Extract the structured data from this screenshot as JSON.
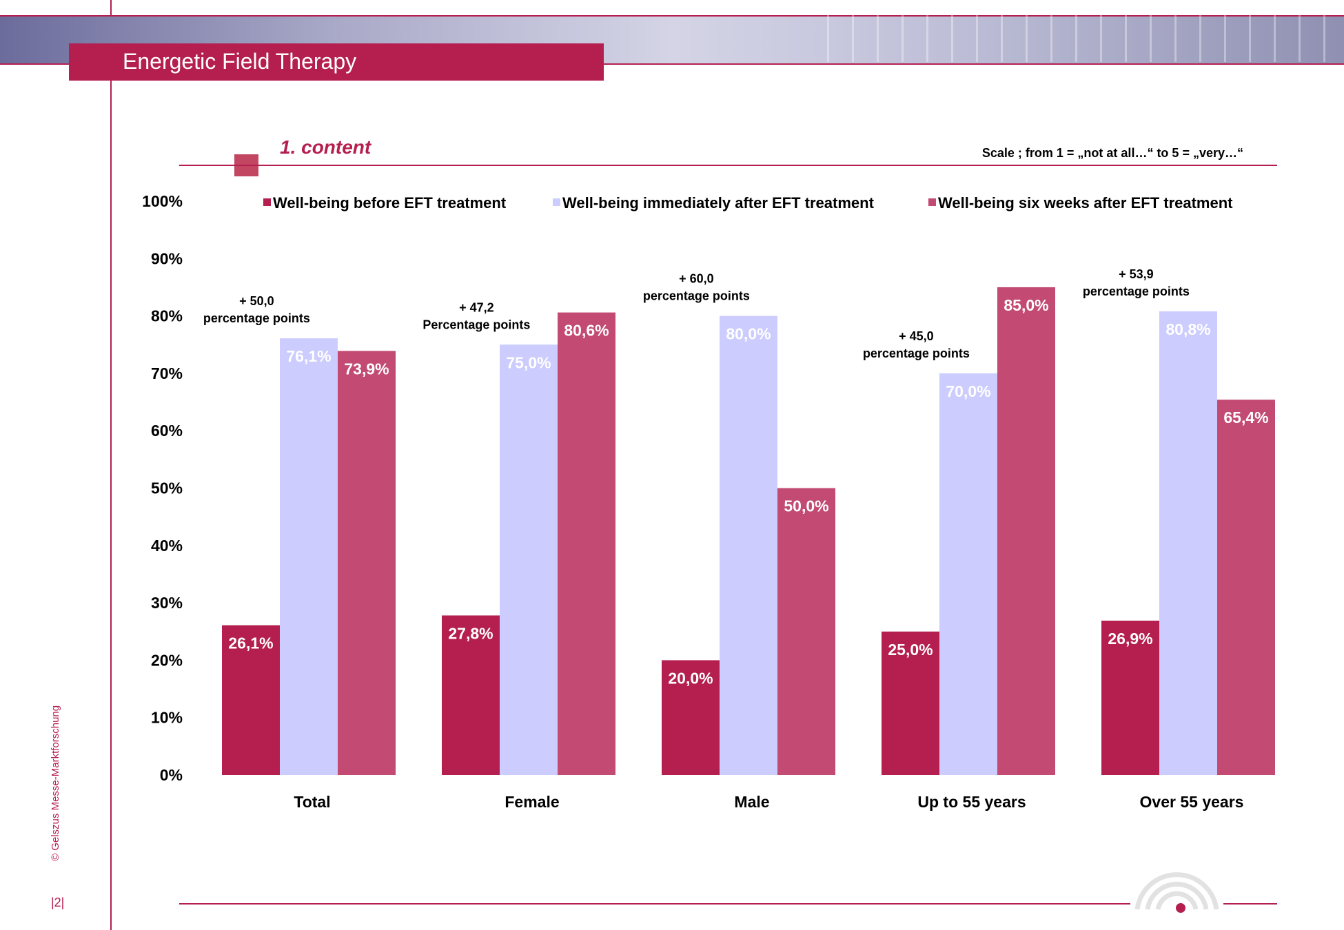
{
  "header": {
    "title": "Energetic Field Therapy"
  },
  "section": {
    "subtitle": "1. content",
    "scale_note": "Scale ; from 1 = „not at all…“  to 5 = „very…“"
  },
  "footer": {
    "copyright": "© Gelszus Messe-Marktforschung",
    "page": "|2|"
  },
  "colors": {
    "accent": "#b41f50",
    "before": "#b41f50",
    "immediately": "#ccccfe",
    "six_weeks": "#c24a73"
  },
  "chart_data": {
    "type": "bar",
    "categories": [
      "Total",
      "Female",
      "Male",
      "Up to 55 years",
      "Over 55 years"
    ],
    "ylim": [
      0,
      100
    ],
    "yticks": [
      "0%",
      "10%",
      "20%",
      "30%",
      "40%",
      "50%",
      "60%",
      "70%",
      "80%",
      "90%",
      "100%"
    ],
    "legend_position": "top",
    "grid": false,
    "series": [
      {
        "name": "Well-being before EFT treatment",
        "color": "#b41f50",
        "values": [
          26.1,
          27.8,
          20.0,
          25.0,
          26.9
        ],
        "labels": [
          "26,1%",
          "27,8%",
          "20,0%",
          "25,0%",
          "26,9%"
        ]
      },
      {
        "name": "Well-being immediately after EFT treatment",
        "color": "#ccccfe",
        "values": [
          76.1,
          75.0,
          80.0,
          70.0,
          80.8
        ],
        "labels": [
          "76,1%",
          "75,0%",
          "80,0%",
          "70,0%",
          "80,8%"
        ]
      },
      {
        "name": "Well-being six weeks after EFT treatment",
        "color": "#c24a73",
        "values": [
          73.9,
          80.6,
          50.0,
          85.0,
          65.4
        ],
        "labels": [
          "73,9%",
          "80,6%",
          "50,0%",
          "85,0%",
          "65,4%"
        ]
      }
    ],
    "annotations": [
      {
        "category": "Total",
        "value": "+ 50,0",
        "text": "percentage points"
      },
      {
        "category": "Female",
        "value": "+ 47,2",
        "text": "Percentage points"
      },
      {
        "category": "Male",
        "value": "+ 60,0",
        "text": "percentage points"
      },
      {
        "category": "Up to 55 years",
        "value": "+ 45,0",
        "text": "percentage points"
      },
      {
        "category": "Over 55 years",
        "value": "+ 53,9",
        "text": "percentage points"
      }
    ]
  }
}
